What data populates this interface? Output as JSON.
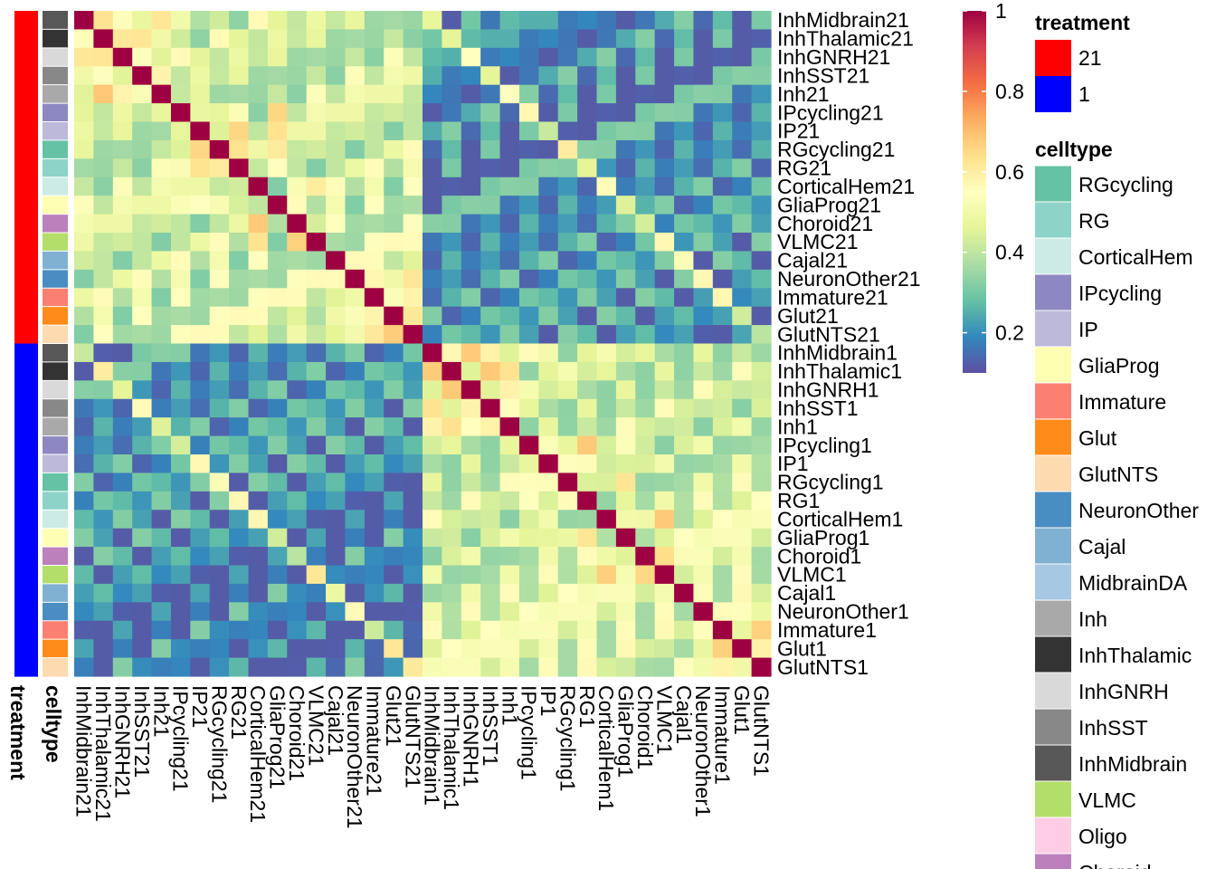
{
  "chart_data": {
    "type": "heatmap",
    "labels": [
      "InhMidbrain21",
      "InhThalamic21",
      "InhGNRH21",
      "InhSST21",
      "Inh21",
      "IPcycling21",
      "IP21",
      "RGcycling21",
      "RG21",
      "CorticalHem21",
      "GliaProg21",
      "Choroid21",
      "VLMC21",
      "Cajal21",
      "NeuronOther21",
      "Immature21",
      "Glut21",
      "GlutNTS21",
      "InhMidbrain1",
      "InhThalamic1",
      "InhGNRH1",
      "InhSST1",
      "Inh1",
      "IPcycling1",
      "IP1",
      "RGcycling1",
      "RG1",
      "CorticalHem1",
      "GliaProg1",
      "Choroid1",
      "VLMC1",
      "Cajal1",
      "NeuronOther1",
      "Immature1",
      "Glut1",
      "GlutNTS1"
    ],
    "row_treatment": [
      "21",
      "21",
      "21",
      "21",
      "21",
      "21",
      "21",
      "21",
      "21",
      "21",
      "21",
      "21",
      "21",
      "21",
      "21",
      "21",
      "21",
      "21",
      "1",
      "1",
      "1",
      "1",
      "1",
      "1",
      "1",
      "1",
      "1",
      "1",
      "1",
      "1",
      "1",
      "1",
      "1",
      "1",
      "1",
      "1"
    ],
    "row_celltype": [
      "InhMidbrain",
      "InhThalamic",
      "InhGNRH",
      "InhSST",
      "Inh",
      "IPcycling",
      "IP",
      "RGcycling",
      "RG",
      "CorticalHem",
      "GliaProg",
      "Choroid",
      "VLMC",
      "Cajal",
      "NeuronOther",
      "Immature",
      "Glut",
      "GlutNTS",
      "InhMidbrain",
      "InhThalamic",
      "InhGNRH",
      "InhSST",
      "Inh",
      "IPcycling",
      "IP",
      "RGcycling",
      "RG",
      "CorticalHem",
      "GliaProg",
      "Choroid",
      "VLMC",
      "Cajal",
      "NeuronOther",
      "Immature",
      "Glut",
      "GlutNTS"
    ],
    "value_range": [
      0.1,
      1
    ],
    "colorbar": {
      "ticks": [
        0.2,
        0.4,
        0.6,
        0.8,
        1
      ],
      "tick_labels": [
        "0.2",
        "0.4",
        "0.6",
        "0.8",
        "1"
      ]
    },
    "palette": [
      "#5E4FA2",
      "#3288BD",
      "#66C2A5",
      "#ABDDA4",
      "#E6F598",
      "#FFFFBF",
      "#FEE08B",
      "#FDAE61",
      "#F46D43",
      "#D53E4F",
      "#9E0142"
    ],
    "annotation_titles": {
      "treatment": "treatment",
      "celltype": "celltype"
    },
    "legend": {
      "treatment": [
        {
          "label": "21",
          "color": "#FF0000"
        },
        {
          "label": "1",
          "color": "#0000FF"
        }
      ],
      "celltype": [
        {
          "label": "RGcycling",
          "color": "#66C2A5"
        },
        {
          "label": "RG",
          "color": "#8DD3C7"
        },
        {
          "label": "CorticalHem",
          "color": "#CCEBE5"
        },
        {
          "label": "IPcycling",
          "color": "#8E88C2"
        },
        {
          "label": "IP",
          "color": "#BCB9DB"
        },
        {
          "label": "GliaProg",
          "color": "#FFFFB3"
        },
        {
          "label": "Immature",
          "color": "#FB8072"
        },
        {
          "label": "Glut",
          "color": "#FF8C1A"
        },
        {
          "label": "GlutNTS",
          "color": "#FDDAB0"
        },
        {
          "label": "NeuronOther",
          "color": "#4A8DC2"
        },
        {
          "label": "Cajal",
          "color": "#80B1D3"
        },
        {
          "label": "MidbrainDA",
          "color": "#A6C8E3"
        },
        {
          "label": "Inh",
          "color": "#A9A9A9"
        },
        {
          "label": "InhThalamic",
          "color": "#333333"
        },
        {
          "label": "InhGNRH",
          "color": "#D9D9D9"
        },
        {
          "label": "InhSST",
          "color": "#888888"
        },
        {
          "label": "InhMidbrain",
          "color": "#575757"
        },
        {
          "label": "VLMC",
          "color": "#B3DE69"
        },
        {
          "label": "Oligo",
          "color": "#FCCDE5"
        },
        {
          "label": "Choroid",
          "color": "#BC80BD"
        }
      ]
    }
  }
}
